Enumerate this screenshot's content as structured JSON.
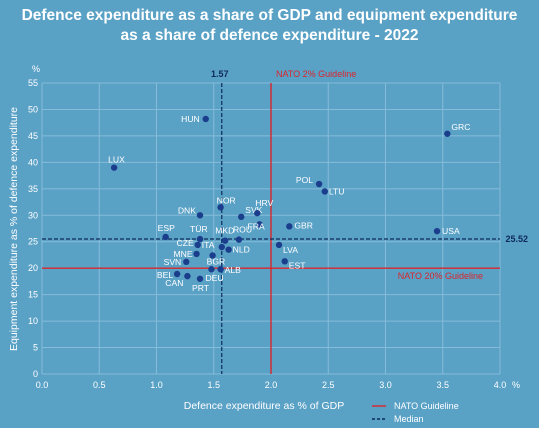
{
  "title_line1": "Defence expenditure as a share of GDP and equipment expenditure",
  "title_line2": "as a share of defence expenditure - 2022",
  "chart_data": {
    "type": "scatter",
    "xlabel": "Defence expenditure as % of GDP",
    "ylabel": "Equipment expenditure as % of defence expenditure",
    "x_unit": "%",
    "y_unit": "%",
    "xlim": [
      0,
      4.0
    ],
    "ylim": [
      0,
      55
    ],
    "x_ticks": [
      "0.0",
      "0.5",
      "1.0",
      "1.5",
      "2.0",
      "2.5",
      "3.0",
      "3.5",
      "4.0"
    ],
    "y_ticks": [
      "0",
      "5",
      "10",
      "15",
      "20",
      "25",
      "30",
      "35",
      "40",
      "45",
      "50",
      "55"
    ],
    "grid": true,
    "guidelines": {
      "nato_gdp": {
        "value": 2.0,
        "label": "NATO 2% Guideline",
        "color": "#d9262c"
      },
      "nato_equipment": {
        "value": 20,
        "label": "NATO 20% Guideline",
        "color": "#d9262c"
      }
    },
    "medians": {
      "x": {
        "value": 1.57,
        "label": "1.57"
      },
      "y": {
        "value": 25.52,
        "label": "25.52"
      }
    },
    "legend": {
      "position": "bottom-right",
      "items": [
        {
          "label": "NATO Guideline",
          "style": "solid",
          "color": "#d9262c"
        },
        {
          "label": "Median",
          "style": "dashed",
          "color": "#0d2a5c"
        }
      ]
    },
    "point_color": "#1a3e8c",
    "points": [
      {
        "label": "HUN",
        "x": 1.43,
        "y": 48.2
      },
      {
        "label": "GRC",
        "x": 3.54,
        "y": 45.4
      },
      {
        "label": "LUX",
        "x": 0.63,
        "y": 39.0
      },
      {
        "label": "POL",
        "x": 2.42,
        "y": 35.9
      },
      {
        "label": "LTU",
        "x": 2.47,
        "y": 34.5
      },
      {
        "label": "NOR",
        "x": 1.56,
        "y": 31.5
      },
      {
        "label": "DNK",
        "x": 1.38,
        "y": 30.0
      },
      {
        "label": "SVK",
        "x": 1.74,
        "y": 29.7
      },
      {
        "label": "HRV",
        "x": 1.88,
        "y": 30.4
      },
      {
        "label": "FRA",
        "x": 1.9,
        "y": 28.3
      },
      {
        "label": "GBR",
        "x": 2.16,
        "y": 27.9
      },
      {
        "label": "ESP",
        "x": 1.08,
        "y": 25.9
      },
      {
        "label": "USA",
        "x": 3.45,
        "y": 27.0
      },
      {
        "label": "TÜR",
        "x": 1.38,
        "y": 25.5
      },
      {
        "label": "MKD",
        "x": 1.6,
        "y": 25.2
      },
      {
        "label": "ROU",
        "x": 1.72,
        "y": 25.4
      },
      {
        "label": "CZE",
        "x": 1.36,
        "y": 24.4
      },
      {
        "label": "ITA",
        "x": 1.57,
        "y": 24.0
      },
      {
        "label": "LVA",
        "x": 2.07,
        "y": 24.4
      },
      {
        "label": "NLD",
        "x": 1.63,
        "y": 23.5
      },
      {
        "label": "MNE",
        "x": 1.35,
        "y": 22.7
      },
      {
        "label": "BGR",
        "x": 1.49,
        "y": 22.4
      },
      {
        "label": "EST",
        "x": 2.12,
        "y": 21.3
      },
      {
        "label": "SVN",
        "x": 1.26,
        "y": 21.2
      },
      {
        "label": "ALB",
        "x": 1.56,
        "y": 19.8
      },
      {
        "label": "DEU",
        "x": 1.48,
        "y": 19.8
      },
      {
        "label": "BEL",
        "x": 1.18,
        "y": 18.9
      },
      {
        "label": "CAN",
        "x": 1.27,
        "y": 18.5
      },
      {
        "label": "PRT",
        "x": 1.38,
        "y": 18.0
      }
    ]
  }
}
